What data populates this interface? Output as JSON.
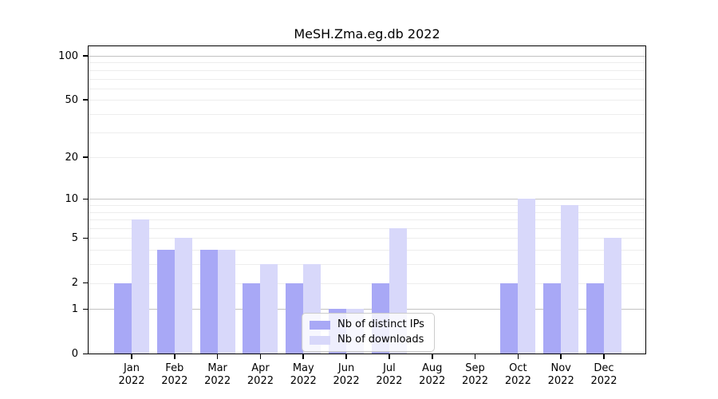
{
  "title": "MeSH.Zma.eg.db 2022",
  "colors": {
    "series_distinct_ips": "#a8a8f6",
    "series_downloads": "#d8d8fa",
    "gridline_major": "#c2c2c2",
    "gridline_minor": "#ededed",
    "axis": "#000000",
    "legend_border": "#cccccc"
  },
  "chart_data": {
    "type": "bar",
    "title": "MeSH.Zma.eg.db 2022",
    "categories": [
      "Jan",
      "Feb",
      "Mar",
      "Apr",
      "May",
      "Jun",
      "Jul",
      "Aug",
      "Sep",
      "Oct",
      "Nov",
      "Dec"
    ],
    "year_label": "2022",
    "series": [
      {
        "name": "Nb of distinct IPs",
        "color": "#a8a8f6",
        "values": [
          2,
          4,
          4,
          2,
          2,
          1,
          2,
          0,
          0,
          2,
          2,
          2
        ]
      },
      {
        "name": "Nb of downloads",
        "color": "#d8d8fa",
        "values": [
          7,
          5,
          4,
          3,
          3,
          1,
          6,
          0,
          0,
          10,
          9,
          5
        ]
      }
    ],
    "xlabel": "",
    "ylabel": "",
    "yscale": "log1p",
    "ylim": [
      0,
      100
    ],
    "yticks": [
      0,
      1,
      2,
      5,
      10,
      20,
      50,
      100
    ],
    "gridlines_major": [
      1,
      10,
      100
    ],
    "gridlines_minor": [
      2,
      3,
      4,
      5,
      6,
      7,
      8,
      9,
      20,
      30,
      40,
      50,
      60,
      70,
      80,
      90
    ],
    "grid": true,
    "legend_position": "lower-center"
  }
}
